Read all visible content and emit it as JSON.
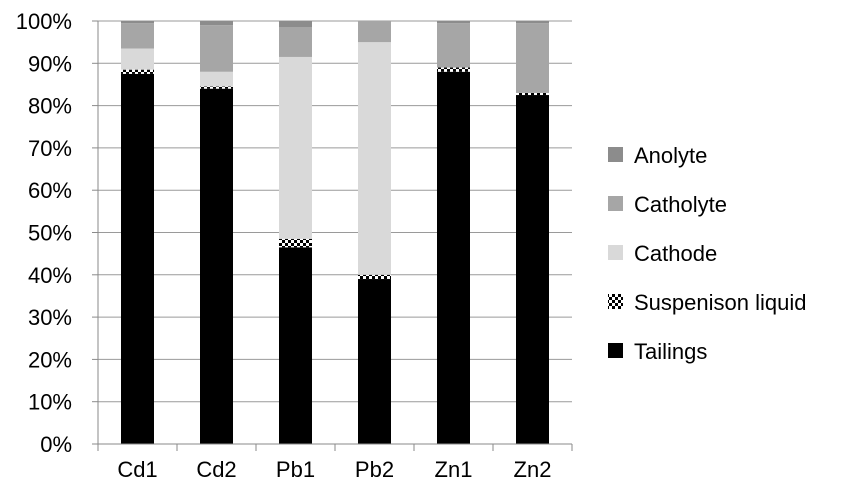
{
  "chart_data": {
    "type": "bar",
    "stacked": true,
    "percent": true,
    "categories": [
      "Cd1",
      "Cd2",
      "Pb1",
      "Pb2",
      "Zn1",
      "Zn2"
    ],
    "series": [
      {
        "name": "Tailings",
        "values": [
          87.5,
          84.0,
          46.5,
          39.0,
          88.0,
          82.5
        ],
        "color": "#000000",
        "pattern": "solid"
      },
      {
        "name": "Suspenison liquid",
        "values": [
          1.0,
          0.5,
          2.0,
          1.0,
          1.0,
          0.5
        ],
        "color": "#000000",
        "pattern": "checker"
      },
      {
        "name": "Cathode",
        "values": [
          5.0,
          3.5,
          43.0,
          55.0,
          0.0,
          0.0
        ],
        "color": "#d9d9d9",
        "pattern": "solid"
      },
      {
        "name": "Catholyte",
        "values": [
          6.0,
          11.0,
          7.0,
          5.0,
          10.5,
          16.5
        ],
        "color": "#a6a6a6",
        "pattern": "solid"
      },
      {
        "name": "Anolyte",
        "values": [
          0.5,
          1.0,
          1.5,
          0.0,
          0.5,
          0.5
        ],
        "color": "#8c8c8c",
        "pattern": "solid"
      }
    ],
    "legend_order": [
      "Anolyte",
      "Catholyte",
      "Cathode",
      "Suspenison liquid",
      "Tailings"
    ],
    "ylim": [
      0,
      100
    ],
    "yticks": [
      "0%",
      "10%",
      "20%",
      "30%",
      "40%",
      "50%",
      "60%",
      "70%",
      "80%",
      "90%",
      "100%"
    ],
    "xlabel": "",
    "ylabel": "",
    "title": "",
    "grid": "horizontal",
    "legend_position": "right"
  }
}
